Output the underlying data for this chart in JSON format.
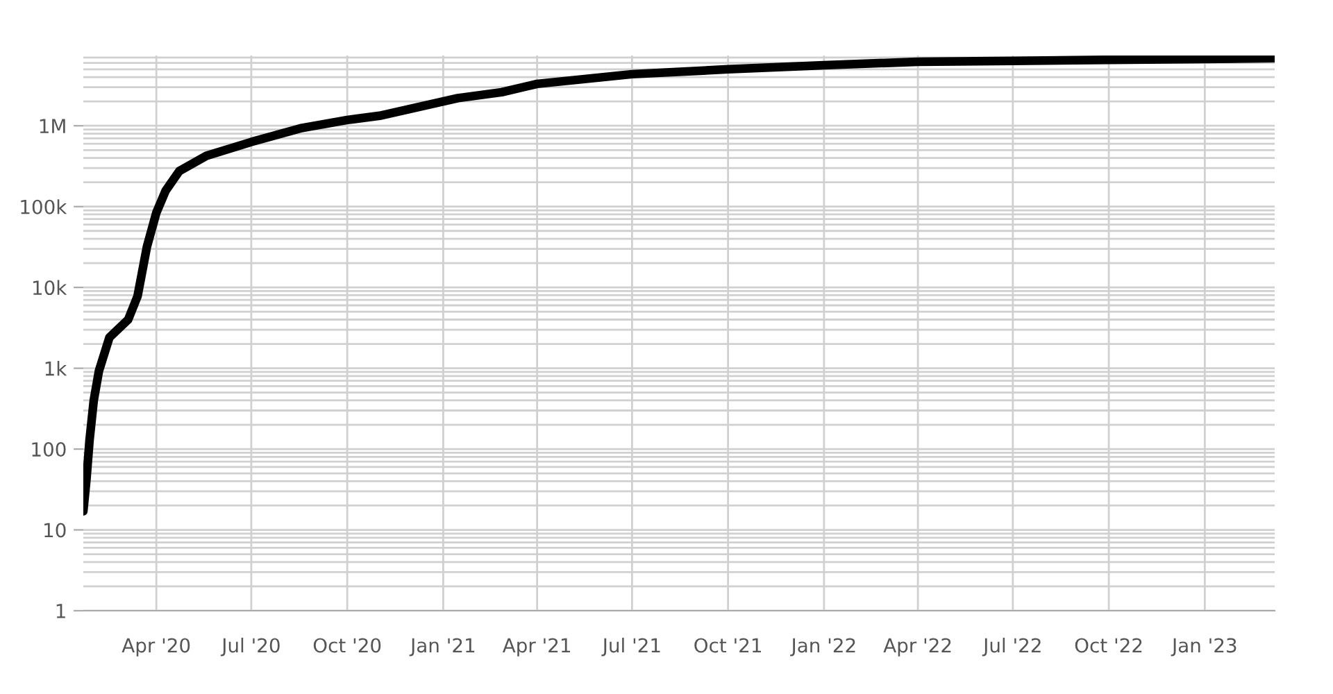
{
  "chart_data": {
    "type": "line",
    "log": "y",
    "grid": true,
    "marker": "none",
    "line_style": "solid",
    "x": [
      "2020-01-22",
      "2020-01-25",
      "2020-01-28",
      "2020-02-01",
      "2020-02-06",
      "2020-02-16",
      "2020-03-05",
      "2020-03-14",
      "2020-03-23",
      "2020-04-01",
      "2020-04-10",
      "2020-04-23",
      "2020-05-19",
      "2020-07-01",
      "2020-08-17",
      "2020-10-01",
      "2020-11-01",
      "2021-01-15",
      "2021-02-26",
      "2021-04-01",
      "2021-07-01",
      "2021-10-01",
      "2022-01-01",
      "2022-04-01",
      "2022-07-01",
      "2022-10-01",
      "2023-01-01",
      "2023-03-09"
    ],
    "series": [
      {
        "color": "#000000",
        "values": [
          17,
          42,
          130,
          400,
          930,
          2400,
          4000,
          7800,
          32000,
          84000,
          158000,
          275000,
          425000,
          630000,
          930000,
          1180000,
          1330000,
          2200000,
          2600000,
          3300000,
          4350000,
          5000000,
          5600000,
          6200000,
          6350000,
          6550000,
          6700000,
          6870000
        ]
      }
    ],
    "xlim": [
      "2020-01-22",
      "2023-03-09"
    ],
    "xticks": [
      {
        "value": "2020-04-01",
        "label": "Apr '20"
      },
      {
        "value": "2020-07-01",
        "label": "Jul '20"
      },
      {
        "value": "2020-10-01",
        "label": "Oct '20"
      },
      {
        "value": "2021-01-01",
        "label": "Jan '21"
      },
      {
        "value": "2021-04-01",
        "label": "Apr '21"
      },
      {
        "value": "2021-07-01",
        "label": "Jul '21"
      },
      {
        "value": "2021-10-01",
        "label": "Oct '21"
      },
      {
        "value": "2022-01-01",
        "label": "Jan '22"
      },
      {
        "value": "2022-04-01",
        "label": "Apr '22"
      },
      {
        "value": "2022-07-01",
        "label": "Jul '22"
      },
      {
        "value": "2022-10-01",
        "label": "Oct '22"
      },
      {
        "value": "2023-01-01",
        "label": "Jan '23"
      }
    ],
    "ylim": [
      1,
      7400000
    ],
    "yticks": [
      1,
      10,
      100,
      {
        "value": 1000,
        "label": "1k"
      },
      {
        "value": 10000,
        "label": "10k"
      },
      {
        "value": 100000,
        "label": "100k"
      },
      {
        "value": 1000000,
        "label": "1M"
      }
    ]
  }
}
